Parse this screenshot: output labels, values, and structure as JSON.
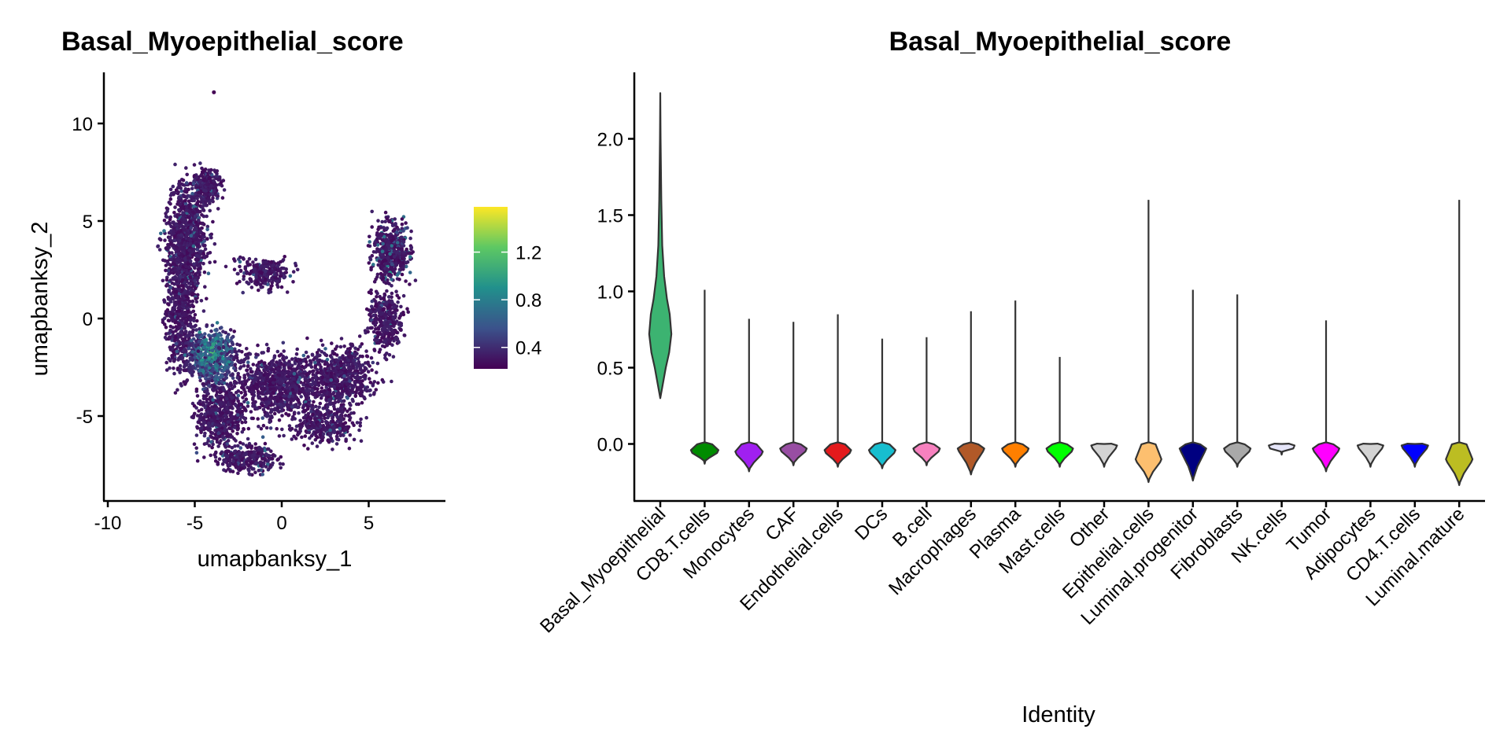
{
  "chart_data": [
    {
      "type": "scatter",
      "title": "Basal_Myoepithelial_score",
      "xlabel": "umapbanksy_1",
      "ylabel": "umapbanksy_2",
      "xlim": [
        -10.2,
        9.5
      ],
      "ylim": [
        -9.2,
        12.6
      ],
      "xticks": [
        "-10",
        "-5",
        "0",
        "5"
      ],
      "xtick_values": [
        -10,
        -5,
        0,
        5
      ],
      "yticks": [
        "10",
        "5",
        "0",
        "-5"
      ],
      "ytick_values": [
        10,
        5,
        0,
        -5
      ],
      "colorbar": {
        "colormap": "viridis",
        "range": [
          0.22,
          1.58
        ],
        "ticks": [
          "1.2",
          "0.8",
          "0.4"
        ],
        "tick_values": [
          1.2,
          0.8,
          0.4
        ]
      },
      "grid": false
    },
    {
      "type": "violin",
      "title": "Basal_Myoepithelial_score",
      "xlabel": "Identity",
      "ylabel": "",
      "ylim": [
        -0.37,
        2.43
      ],
      "yticks": [
        "2.0",
        "1.5",
        "1.0",
        "0.5",
        "0.0"
      ],
      "ytick_values": [
        2.0,
        1.5,
        1.0,
        0.5,
        0.0
      ],
      "grid": false,
      "categories": [
        {
          "name": "Basal_Myoepithelial",
          "color": "#3CB371",
          "min": 0.3,
          "max": 2.3,
          "mode": 0.72,
          "width": 0.5
        },
        {
          "name": "CD8.T.cells",
          "color": "#008B00",
          "min": -0.13,
          "max": 1.01,
          "mode": -0.04,
          "width": 0.62
        },
        {
          "name": "Monocytes",
          "color": "#A020F0",
          "min": -0.18,
          "max": 0.82,
          "mode": -0.05,
          "width": 0.62
        },
        {
          "name": "CAF",
          "color": "#984EA3",
          "min": -0.14,
          "max": 0.8,
          "mode": -0.03,
          "width": 0.6
        },
        {
          "name": "Endothelial.cells",
          "color": "#E41A1C",
          "min": -0.15,
          "max": 0.85,
          "mode": -0.04,
          "width": 0.6
        },
        {
          "name": "DCs",
          "color": "#17BECF",
          "min": -0.16,
          "max": 0.69,
          "mode": -0.04,
          "width": 0.6
        },
        {
          "name": "B.cell",
          "color": "#F781BF",
          "min": -0.14,
          "max": 0.7,
          "mode": -0.03,
          "width": 0.6
        },
        {
          "name": "Macrophages",
          "color": "#B15928",
          "min": -0.2,
          "max": 0.87,
          "mode": -0.03,
          "width": 0.6
        },
        {
          "name": "Plasma",
          "color": "#FF7F00",
          "min": -0.15,
          "max": 0.94,
          "mode": -0.03,
          "width": 0.6
        },
        {
          "name": "Mast.cells",
          "color": "#00FF00",
          "min": -0.15,
          "max": 0.57,
          "mode": -0.03,
          "width": 0.6
        },
        {
          "name": "Other",
          "color": "#D3D3D3",
          "min": -0.15,
          "max": 0.0,
          "mode": -0.01,
          "width": 0.58
        },
        {
          "name": "Epithelial.cells",
          "color": "#FDBF6F",
          "min": -0.25,
          "max": 1.6,
          "mode": -0.1,
          "width": 0.58
        },
        {
          "name": "Luminal.progenitor",
          "color": "#000080",
          "min": -0.24,
          "max": 1.01,
          "mode": -0.03,
          "width": 0.6
        },
        {
          "name": "Fibroblasts",
          "color": "#A9A9A9",
          "min": -0.15,
          "max": 0.98,
          "mode": -0.03,
          "width": 0.6
        },
        {
          "name": "NK.cells",
          "color": "#E6E6FA",
          "min": -0.07,
          "max": 0.0,
          "mode": -0.01,
          "width": 0.58
        },
        {
          "name": "Tumor",
          "color": "#FF00FF",
          "min": -0.18,
          "max": 0.81,
          "mode": -0.03,
          "width": 0.6
        },
        {
          "name": "Adipocytes",
          "color": "#D3D3D3",
          "min": -0.15,
          "max": 0.0,
          "mode": -0.01,
          "width": 0.58
        },
        {
          "name": "CD4.T.cells",
          "color": "#0000FF",
          "min": -0.15,
          "max": 0.0,
          "mode": -0.01,
          "width": 0.6
        },
        {
          "name": "Luminal.mature",
          "color": "#BCBD22",
          "min": -0.27,
          "max": 1.6,
          "mode": -0.1,
          "width": 0.6
        }
      ]
    }
  ]
}
